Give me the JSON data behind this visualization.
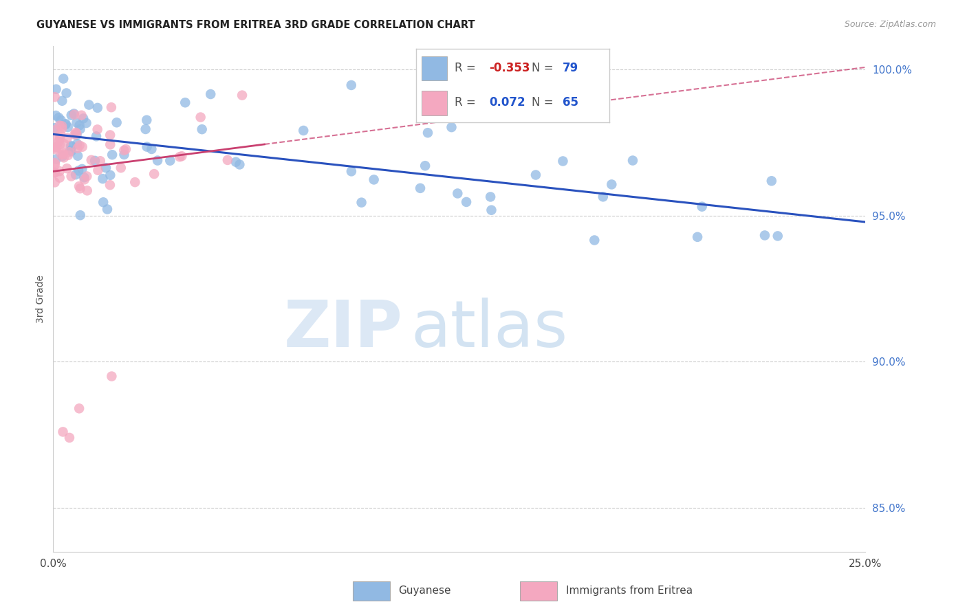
{
  "title": "GUYANESE VS IMMIGRANTS FROM ERITREA 3RD GRADE CORRELATION CHART",
  "source": "Source: ZipAtlas.com",
  "ylabel": "3rd Grade",
  "xmin": 0.0,
  "xmax": 0.25,
  "ymin": 0.835,
  "ymax": 1.008,
  "yticks": [
    0.85,
    0.9,
    0.95,
    1.0
  ],
  "ytick_labels": [
    "85.0%",
    "90.0%",
    "95.0%",
    "100.0%"
  ],
  "grid_color": "#cccccc",
  "background_color": "#ffffff",
  "blue_color": "#91b9e3",
  "pink_color": "#f4a8c0",
  "blue_line_color": "#2a52be",
  "pink_line_color": "#c94070",
  "R_blue": -0.353,
  "N_blue": 79,
  "R_pink": 0.072,
  "N_pink": 65
}
